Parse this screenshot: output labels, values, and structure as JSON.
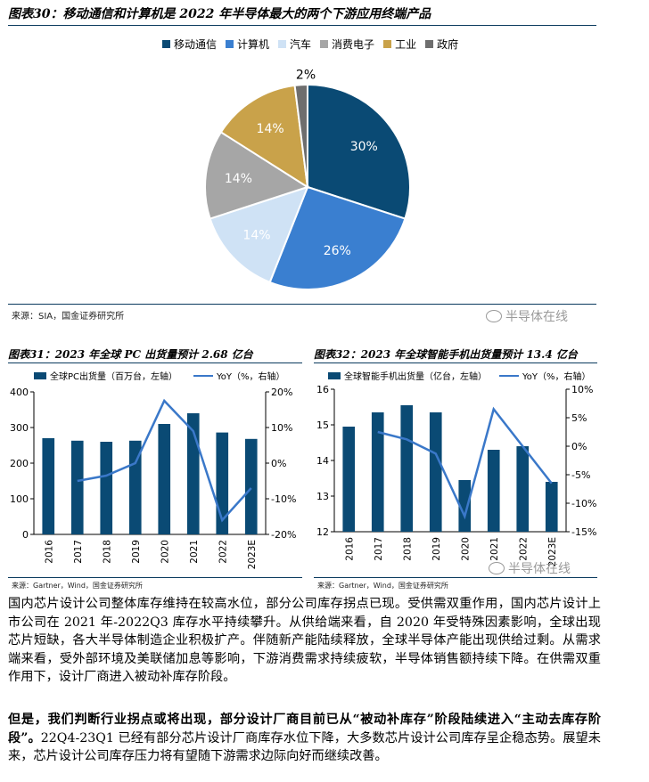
{
  "fig30": {
    "title": "图表30：移动通信和计算机是 2022 年半导体最大的两个下游应用终端产品",
    "source": "来源：SIA，国金证券研究所",
    "watermark": "半导体在线",
    "legend": [
      {
        "label": "移动通信",
        "color": "#0a4a74"
      },
      {
        "label": "计算机",
        "color": "#3a7fd0"
      },
      {
        "label": "汽车",
        "color": "#cfe2f5"
      },
      {
        "label": "消费电子",
        "color": "#a6a6a6"
      },
      {
        "label": "工业",
        "color": "#c9a24a"
      },
      {
        "label": "政府",
        "color": "#6e6e6e"
      }
    ]
  },
  "fig31": {
    "title": "图表31：2023 年全球 PC 出货量预计 2.68 亿台",
    "legend_bar": "全球PC出货量（百万台，左轴）",
    "legend_line": "YoY（%，右轴）",
    "source": "来源：Gartner，Wind，国金证券研究所"
  },
  "fig32": {
    "title": "图表32：2023 年全球智能手机出货量预计 13.4 亿台",
    "legend_bar": "全球智能手机出货量（亿台，左轴）",
    "legend_line": "YoY（%，右轴）",
    "source": "来源：Gartner，Wind，国金证券研究所",
    "watermark": "半导体在线"
  },
  "body": {
    "p1": "国内芯片设计公司整体库存维持在较高水位，部分公司库存拐点已现。受供需双重作用，国内芯片设计上市公司在 2021 年-2022Q3 库存水平持续攀升。从供给端来看，自 2020 年受特殊因素影响，全球出现芯片短缺，各大半导体制造企业积极扩产。伴随新产能陆续释放，全球半导体产能出现供给过剩。从需求端来看，受外部环境及美联储加息等影响，下游消费需求持续疲软，半导体销售额持续下降。在供需双重作用下，设计厂商进入被动补库存阶段。",
    "p2_bold": "但是，我们判断行业拐点或将出现，部分设计厂商目前已从“被动补库存”阶段陆续进入“主动去库存阶段”。",
    "p2_rest": "22Q4-23Q1 已经有部分芯片设计厂商库存水位下降，大多数芯片设计公司库存呈企稳态势。展望未来，芯片设计公司库存压力将有望随下游需求边际向好而继续改善。"
  },
  "chart_data": [
    {
      "type": "pie",
      "categories": [
        "移动通信",
        "计算机",
        "汽车",
        "消费电子",
        "工业",
        "政府"
      ],
      "values": [
        30,
        26,
        14,
        14,
        14,
        2
      ],
      "data_labels": [
        "30%",
        "26%",
        "14%",
        "14%",
        "14%",
        "2%"
      ],
      "colors": [
        "#0a4a74",
        "#3a7fd0",
        "#cfe2f5",
        "#a6a6a6",
        "#c9a24a",
        "#6e6e6e"
      ],
      "label_colors": [
        "#ffffff",
        "#ffffff",
        "#ffffff",
        "#ffffff",
        "#ffffff",
        "#000000"
      ]
    },
    {
      "type": "bar",
      "categories": [
        "2016",
        "2017",
        "2018",
        "2019",
        "2020",
        "2021",
        "2022",
        "2023E"
      ],
      "series": [
        {
          "name": "全球PC出货量（百万台，左轴）",
          "kind": "bar",
          "axis": "left",
          "values": [
            270,
            263,
            260,
            263,
            310,
            340,
            286,
            268
          ]
        },
        {
          "name": "YoY（%，右轴）",
          "kind": "line",
          "axis": "right",
          "values": [
            null,
            -5,
            -3.5,
            0,
            17.5,
            9,
            -16,
            -7
          ]
        }
      ],
      "left_ticks": [
        "0",
        "100",
        "200",
        "300",
        "400"
      ],
      "right_ticks": [
        "-20%",
        "-10%",
        "0%",
        "10%",
        "20%"
      ],
      "ylim_left": [
        0,
        400
      ],
      "ylim_right": [
        -20,
        20
      ],
      "bar_color": "#0a4a74",
      "line_color": "#3a78c9"
    },
    {
      "type": "bar",
      "categories": [
        "2016",
        "2017",
        "2018",
        "2019",
        "2020",
        "2021",
        "2022",
        "2023E"
      ],
      "series": [
        {
          "name": "全球智能手机出货量（亿台，左轴）",
          "kind": "bar",
          "axis": "left",
          "values": [
            14.95,
            15.35,
            15.55,
            15.35,
            13.45,
            14.3,
            14.4,
            13.4
          ]
        },
        {
          "name": "YoY（%，右轴）",
          "kind": "line",
          "axis": "right",
          "values": [
            null,
            2.5,
            1.2,
            -1.3,
            -12.3,
            6.5,
            0,
            -6.5
          ]
        }
      ],
      "left_ticks": [
        "12",
        "13",
        "14",
        "15",
        "16"
      ],
      "right_ticks": [
        "-15%",
        "-10%",
        "-5%",
        "0%",
        "5%",
        "10%"
      ],
      "ylim_left": [
        12,
        16
      ],
      "ylim_right": [
        -15,
        10
      ],
      "bar_color": "#0a4a74",
      "line_color": "#3a78c9"
    }
  ]
}
